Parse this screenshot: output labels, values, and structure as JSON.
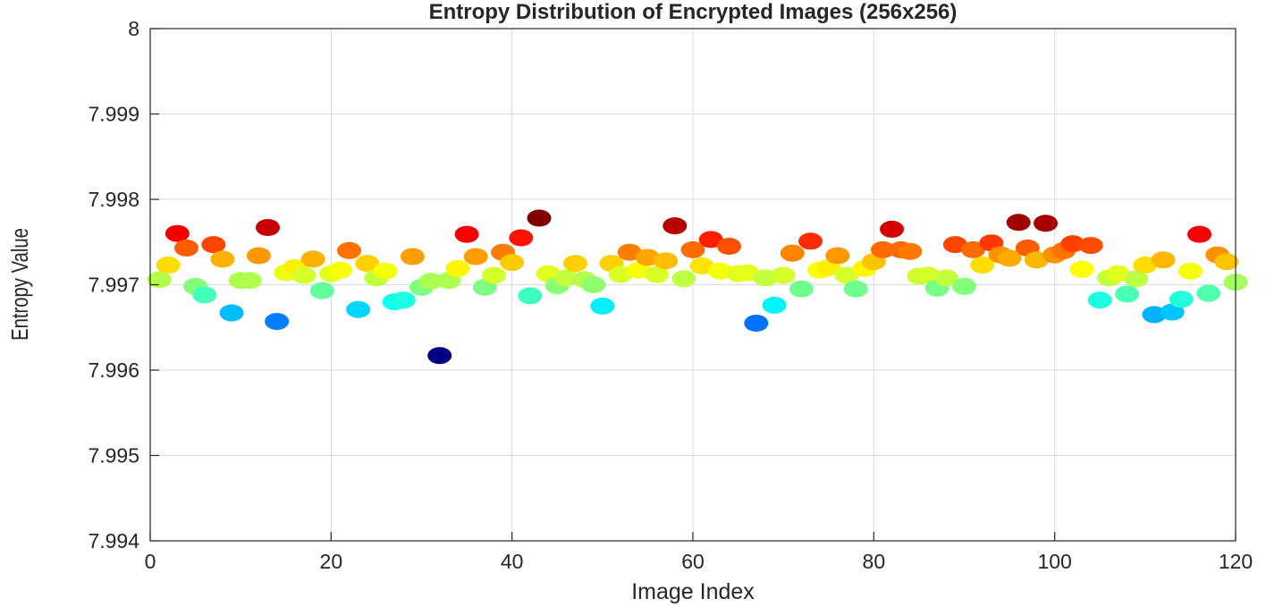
{
  "chart_data": {
    "type": "scatter",
    "title": "Entropy Distribution of Encrypted Images (256x256)",
    "xlabel": "Image Index",
    "ylabel": "Entropy Value",
    "xlim": [
      0,
      120
    ],
    "ylim": [
      7.994,
      8
    ],
    "xticks": [
      0,
      20,
      40,
      60,
      80,
      100,
      120
    ],
    "xtick_labels": [
      "0",
      "20",
      "40",
      "60",
      "80",
      "100",
      "120"
    ],
    "yticks": [
      7.994,
      7.995,
      7.996,
      7.997,
      7.998,
      7.999,
      8
    ],
    "ytick_labels": [
      "7.994",
      "7.995",
      "7.996",
      "7.997",
      "7.998",
      "7.999",
      "8"
    ],
    "grid": true,
    "colormap": "jet",
    "color_scale": [
      7.99617,
      7.99778
    ],
    "x": [
      1,
      2,
      3,
      4,
      5,
      6,
      7,
      8,
      9,
      10,
      11,
      12,
      13,
      14,
      15,
      16,
      17,
      18,
      19,
      20,
      21,
      22,
      23,
      24,
      25,
      26,
      27,
      28,
      29,
      30,
      31,
      32,
      33,
      34,
      35,
      36,
      37,
      38,
      39,
      40,
      41,
      42,
      43,
      44,
      45,
      46,
      47,
      48,
      49,
      50,
      51,
      52,
      53,
      54,
      55,
      56,
      57,
      58,
      59,
      60,
      61,
      62,
      63,
      64,
      65,
      66,
      67,
      68,
      69,
      70,
      71,
      72,
      73,
      74,
      75,
      76,
      77,
      78,
      79,
      80,
      81,
      82,
      83,
      84,
      85,
      86,
      87,
      88,
      89,
      90,
      91,
      92,
      93,
      94,
      95,
      96,
      97,
      98,
      99,
      100,
      101,
      102,
      103,
      104,
      105,
      106,
      107,
      108,
      109,
      110,
      111,
      112,
      113,
      114,
      115,
      116,
      117,
      118,
      119,
      120
    ],
    "y": [
      7.99706,
      7.99723,
      7.9976,
      7.99743,
      7.99698,
      7.99688,
      7.99747,
      7.9973,
      7.99667,
      7.99705,
      7.99705,
      7.99734,
      7.99767,
      7.99657,
      7.99714,
      7.9972,
      7.99711,
      7.9973,
      7.99693,
      7.99713,
      7.99717,
      7.9974,
      7.99671,
      7.99725,
      7.99708,
      7.99716,
      7.9968,
      7.99682,
      7.99733,
      7.99697,
      7.99704,
      7.99617,
      7.99705,
      7.99719,
      7.99759,
      7.99733,
      7.99697,
      7.99711,
      7.99738,
      7.99726,
      7.99755,
      7.99687,
      7.99778,
      7.99713,
      7.99699,
      7.99708,
      7.99725,
      7.99706,
      7.997,
      7.99675,
      7.99725,
      7.99712,
      7.99738,
      7.99717,
      7.99732,
      7.99712,
      7.99728,
      7.99769,
      7.99707,
      7.99741,
      7.99722,
      7.99753,
      7.99716,
      7.99745,
      7.99713,
      7.99714,
      7.99655,
      7.99708,
      7.99676,
      7.99711,
      7.99737,
      7.99695,
      7.99751,
      7.99717,
      7.9972,
      7.99734,
      7.99711,
      7.99695,
      7.99719,
      7.99727,
      7.99741,
      7.99765,
      7.99741,
      7.99739,
      7.9971,
      7.99711,
      7.99696,
      7.99708,
      7.99747,
      7.99698,
      7.99741,
      7.99723,
      7.99749,
      7.99735,
      7.99731,
      7.99773,
      7.99743,
      7.99729,
      7.99772,
      7.99735,
      7.9974,
      7.99748,
      7.99718,
      7.99746,
      7.99682,
      7.99708,
      7.99713,
      7.99689,
      7.99707,
      7.99723,
      7.99665,
      7.99729,
      7.99668,
      7.99683,
      7.99716,
      7.99759,
      7.9969,
      7.99735,
      7.99727,
      7.99703
    ]
  }
}
